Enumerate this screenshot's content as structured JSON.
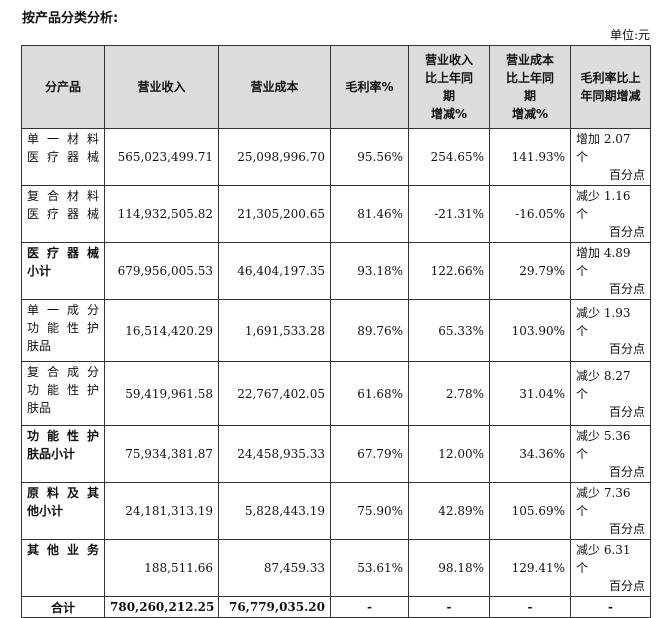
{
  "heading": "按产品分类分析:",
  "unit": "单位:元",
  "columns": [
    "分产品",
    "营业收入",
    "营业成本",
    "毛利率%",
    "营业收入比上年同期增减%",
    "营业成本比上年同期增减%",
    "毛利率比上年同期增减"
  ],
  "header": {
    "c0": "分产品",
    "c1": "营业收入",
    "c2": "营业成本",
    "c3": "毛利率%",
    "c4_l1": "营业收入",
    "c4_l2": "比上年同",
    "c4_l3": "期",
    "c4_l4": "增减%",
    "c5_l1": "营业成本",
    "c5_l2": "比上年同",
    "c5_l3": "期",
    "c5_l4": "增减%",
    "c6_l1": "毛利率比上",
    "c6_l2": "年同期增减"
  },
  "rows": [
    {
      "name_l1": "单一材料",
      "name_l2": "医疗器械",
      "name_l3": "",
      "revenue": "565,023,499.71",
      "cost": "25,098,996.70",
      "margin": "95.56%",
      "rev_change": "254.65%",
      "cost_change": "141.93%",
      "margin_change_l1": "增加 2.07 个",
      "margin_change_l2": "百分点"
    },
    {
      "name_l1": "复合材料",
      "name_l2": "医疗器械",
      "name_l3": "",
      "revenue": "114,932,505.82",
      "cost": "21,305,200.65",
      "margin": "81.46%",
      "rev_change": "-21.31%",
      "cost_change": "-16.05%",
      "margin_change_l1": "减少 1.16 个",
      "margin_change_l2": "百分点"
    },
    {
      "name_l1": "医疗器械",
      "name_l2": "小计",
      "name_l3": "",
      "revenue": "679,956,005.53",
      "cost": "46,404,197.35",
      "margin": "93.18%",
      "rev_change": "122.66%",
      "cost_change": "29.79%",
      "margin_change_l1": "增加 4.89 个",
      "margin_change_l2": "百分点"
    },
    {
      "name_l1": "单一成分",
      "name_l2": "功能性护",
      "name_l3": "肤品",
      "revenue": "16,514,420.29",
      "cost": "1,691,533.28",
      "margin": "89.76%",
      "rev_change": "65.33%",
      "cost_change": "103.90%",
      "margin_change_l1": "减少 1.93 个",
      "margin_change_l2": "百分点"
    },
    {
      "name_l1": "复合成分",
      "name_l2": "功能性护",
      "name_l3": "肤品",
      "revenue": "59,419,961.58",
      "cost": "22,767,402.05",
      "margin": "61.68%",
      "rev_change": "2.78%",
      "cost_change": "31.04%",
      "margin_change_l1": "减少 8.27 个",
      "margin_change_l2": "百分点"
    },
    {
      "name_l1": "功能性护",
      "name_l2": "肤品小计",
      "name_l3": "",
      "revenue": "75,934,381.87",
      "cost": "24,458,935.33",
      "margin": "67.79%",
      "rev_change": "12.00%",
      "cost_change": "34.36%",
      "margin_change_l1": "减少 5.36 个",
      "margin_change_l2": "百分点"
    },
    {
      "name_l1": "原料及其",
      "name_l2": "他小计",
      "name_l3": "",
      "revenue": "24,181,313.19",
      "cost": "5,828,443.19",
      "margin": "75.90%",
      "rev_change": "42.89%",
      "cost_change": "105.69%",
      "margin_change_l1": "减少 7.36 个",
      "margin_change_l2": "百分点"
    },
    {
      "name_l1": "其他业务",
      "name_l2": "",
      "name_l3": "",
      "revenue": "188,511.66",
      "cost": "87,459.33",
      "margin": "53.61%",
      "rev_change": "98.18%",
      "cost_change": "129.41%",
      "margin_change_l1": "减少 6.31 个",
      "margin_change_l2": "百分点"
    }
  ],
  "total": {
    "label": "合计",
    "revenue": "780,260,212.25",
    "cost": "76,779,035.20",
    "margin": "-",
    "rev_change": "-",
    "cost_change": "-",
    "margin_change": "-"
  }
}
